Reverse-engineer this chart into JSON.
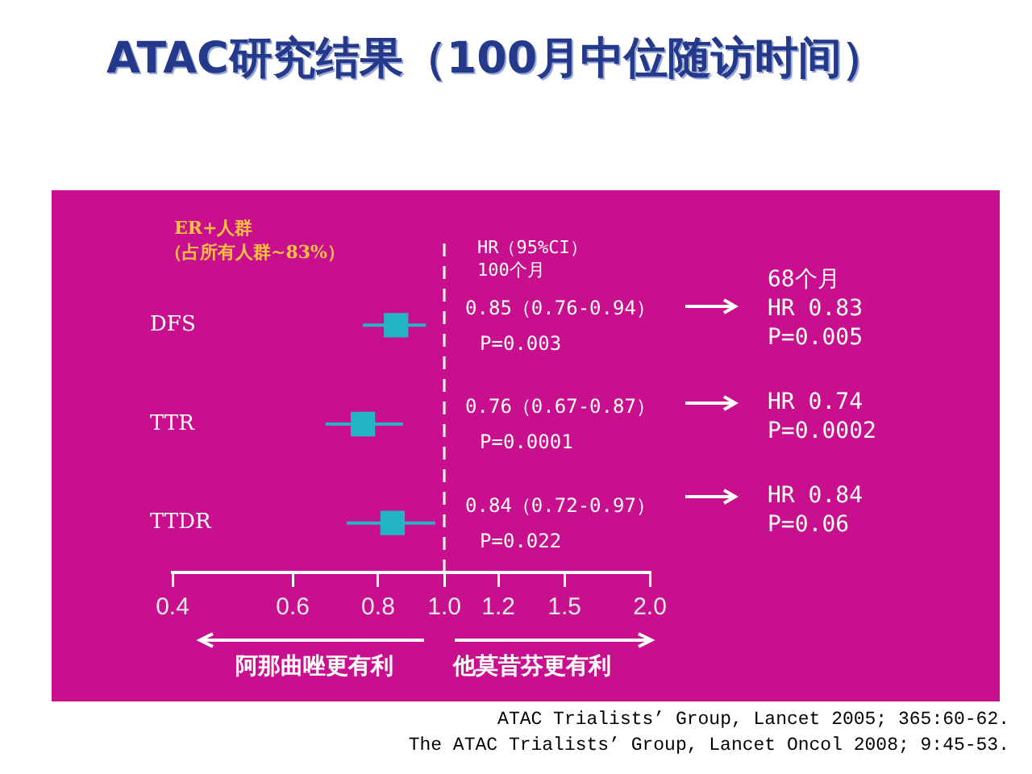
{
  "chart_data": {
    "type": "scatter",
    "orientation": "horizontal",
    "title": "ATAC研究结果（100月中位随访时间）",
    "categories": [
      "DFS",
      "TTR",
      "TTDR"
    ],
    "values": [
      0.85,
      0.76,
      0.84
    ],
    "errors": [
      [
        0.76,
        0.94
      ],
      [
        0.67,
        0.87
      ],
      [
        0.72,
        0.97
      ]
    ],
    "color": "#23b4c8",
    "marker": "square",
    "log": "x",
    "xlim": [
      0.4,
      2.0
    ],
    "xticks": [
      0.4,
      0.6,
      0.8,
      {
        "value": 1.0,
        "label": "1.0"
      },
      1.2,
      1.5,
      {
        "value": 2.0,
        "label": "2.0"
      }
    ],
    "ref_lines": [
      {
        "axis": "x",
        "value": 1.0,
        "line_style": "dashed",
        "color": "#ffffff"
      }
    ],
    "annotations": [
      "ER+人群",
      "（占所有人群~83%）",
      "HR（95%CI）",
      "100个月",
      "0.85（0.76-0.94）",
      "P=0.003",
      "0.76（0.67-0.87）",
      "P=0.0001",
      "0.84（0.72-0.97）",
      "P=0.022",
      "68个月",
      "HR 0.83",
      "P=0.005",
      "HR 0.74",
      "P=0.0002",
      "HR 0.84",
      "P=0.06",
      "阿那曲唑更有利",
      "他莫昔芬更有利",
      "ATAC Trialists’ Group, Lancet 2005; 365:60-62.",
      "The ATAC Trialists’ Group, Lancet Oncol 2008; 9:45-53."
    ]
  }
}
